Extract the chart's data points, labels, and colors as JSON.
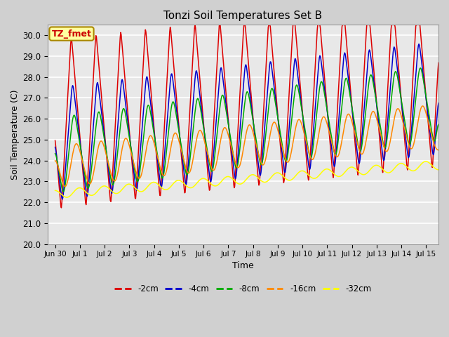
{
  "title": "Tonzi Soil Temperatures Set B",
  "xlabel": "Time",
  "ylabel": "Soil Temperature (C)",
  "ylim": [
    20.0,
    30.5
  ],
  "yticks": [
    20.0,
    21.0,
    22.0,
    23.0,
    24.0,
    25.0,
    26.0,
    27.0,
    28.0,
    29.0,
    30.0
  ],
  "line_colors": {
    "-2cm": "#dd0000",
    "-4cm": "#0000cc",
    "-8cm": "#00aa00",
    "-16cm": "#ff8800",
    "-32cm": "#ffff00"
  },
  "legend_label_box": "TZ_fmet",
  "num_days": 15.5,
  "points_per_day": 48
}
